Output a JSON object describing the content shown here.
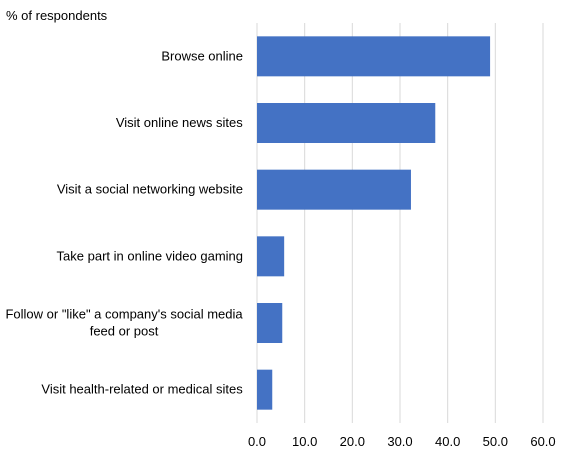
{
  "chart_data": {
    "type": "bar",
    "orientation": "horizontal",
    "unit_label": "% of respondents",
    "categories": [
      [
        "Browse online"
      ],
      [
        "Visit online news sites"
      ],
      [
        "Visit a social networking website"
      ],
      [
        "Take part in online video gaming"
      ],
      [
        "Follow or \"like\" a company's social media",
        "feed or post"
      ],
      [
        "Visit health-related or medical sites"
      ]
    ],
    "values": [
      48.9,
      37.4,
      32.3,
      5.7,
      5.3,
      3.2
    ],
    "xlim": [
      0,
      60
    ],
    "ticks": [
      "0.0",
      "10.0",
      "20.0",
      "30.0",
      "40.0",
      "50.0",
      "60.0"
    ],
    "grid": "vertical",
    "legend": "none",
    "bar_color": "#4472C4",
    "grid_color": "#d9d9d9"
  }
}
